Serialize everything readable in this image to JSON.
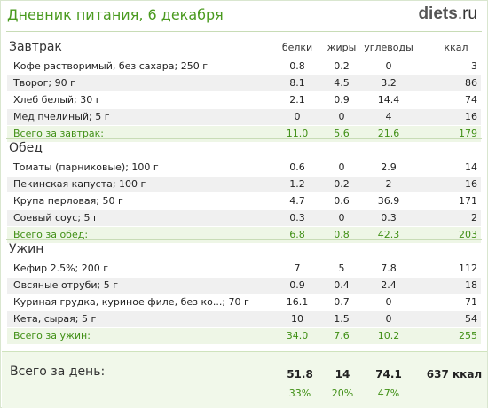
{
  "header": {
    "title": "Дневник питания, 6 декабря",
    "logo_main": "diets",
    "logo_tld": ".ru"
  },
  "columns": {
    "protein": "белки",
    "fat": "жиры",
    "carbs": "углеводы",
    "kcal": "ккал"
  },
  "sections": [
    {
      "title": "Завтрак",
      "items": [
        {
          "name": "Кофе растворимый, без сахара; 250 г",
          "protein": "0.8",
          "fat": "0.2",
          "carbs": "0",
          "kcal": "3"
        },
        {
          "name": "Творог; 90 г",
          "protein": "8.1",
          "fat": "4.5",
          "carbs": "3.2",
          "kcal": "86"
        },
        {
          "name": "Хлеб белый; 30 г",
          "protein": "2.1",
          "fat": "0.9",
          "carbs": "14.4",
          "kcal": "74"
        },
        {
          "name": "Мед пчелиный; 5 г",
          "protein": "0",
          "fat": "0",
          "carbs": "4",
          "kcal": "16"
        }
      ],
      "total": {
        "name": "Всего за завтрак:",
        "protein": "11.0",
        "fat": "5.6",
        "carbs": "21.6",
        "kcal": "179"
      }
    },
    {
      "title": "Обед",
      "items": [
        {
          "name": "Томаты (парниковые); 100 г",
          "protein": "0.6",
          "fat": "0",
          "carbs": "2.9",
          "kcal": "14"
        },
        {
          "name": "Пекинская капуста; 100 г",
          "protein": "1.2",
          "fat": "0.2",
          "carbs": "2",
          "kcal": "16"
        },
        {
          "name": "Крупа перловая; 50 г",
          "protein": "4.7",
          "fat": "0.6",
          "carbs": "36.9",
          "kcal": "171"
        },
        {
          "name": "Соевый соус; 5 г",
          "protein": "0.3",
          "fat": "0",
          "carbs": "0.3",
          "kcal": "2"
        }
      ],
      "total": {
        "name": "Всего за обед:",
        "protein": "6.8",
        "fat": "0.8",
        "carbs": "42.3",
        "kcal": "203"
      }
    },
    {
      "title": "Ужин",
      "items": [
        {
          "name": "Кефир 2.5%; 200 г",
          "protein": "7",
          "fat": "5",
          "carbs": "7.8",
          "kcal": "112"
        },
        {
          "name": "Овсяные отруби; 5 г",
          "protein": "0.9",
          "fat": "0.4",
          "carbs": "2.4",
          "kcal": "18"
        },
        {
          "name": "Куриная грудка, куриное филе, без ко...; 70 г",
          "protein": "16.1",
          "fat": "0.7",
          "carbs": "0",
          "kcal": "71"
        },
        {
          "name": "Кета, сырая; 5 г",
          "protein": "10",
          "fat": "1.5",
          "carbs": "0",
          "kcal": "54"
        }
      ],
      "total": {
        "name": "Всего за ужин:",
        "protein": "34.0",
        "fat": "7.6",
        "carbs": "10.2",
        "kcal": "255"
      }
    }
  ],
  "day_total": {
    "label": "Всего за день:",
    "protein": "51.8",
    "fat": "14",
    "carbs": "74.1",
    "kcal": "637 ккал",
    "protein_pct": "33%",
    "fat_pct": "20%",
    "carbs_pct": "47%"
  }
}
